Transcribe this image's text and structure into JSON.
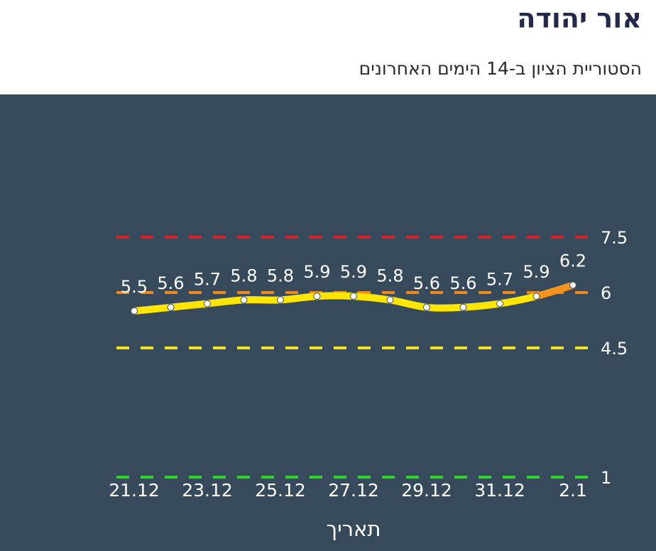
{
  "header": {
    "title": "אור יהודה",
    "subtitle": "הסטוריית הציון ב-14 הימים האחרונים"
  },
  "chart_data": {
    "type": "line",
    "title": "אור יהודה",
    "subtitle": "הסטוריית הציון ב-14 הימים האחרונים",
    "xlabel": "תאריך",
    "ylabel": "",
    "x": [
      "21.12",
      "22.12",
      "23.12",
      "24.12",
      "25.12",
      "26.12",
      "27.12",
      "28.12",
      "29.12",
      "30.12",
      "31.12",
      "1.1",
      "2.1"
    ],
    "x_tick_labels": [
      "21.12",
      "23.12",
      "25.12",
      "27.12",
      "29.12",
      "31.12",
      "2.1"
    ],
    "series": [
      {
        "values": [
          5.5,
          5.6,
          5.7,
          5.8,
          5.8,
          5.9,
          5.9,
          5.8,
          5.6,
          5.6,
          5.7,
          5.9,
          6.2
        ]
      }
    ],
    "data_labels": [
      "5.5",
      "5.6",
      "5.7",
      "5.8",
      "5.8",
      "5.9",
      "5.9",
      "5.8",
      "5.6",
      "5.6",
      "5.7",
      "5.9",
      "6.2"
    ],
    "thresholds": [
      {
        "value": 7.5,
        "label": "7.5",
        "color": "#dd1f26"
      },
      {
        "value": 6,
        "label": "6",
        "color": "#f08a1c"
      },
      {
        "value": 4.5,
        "label": "4.5",
        "color": "#f3e21f"
      },
      {
        "value": 1,
        "label": "1",
        "color": "#2fd42a"
      }
    ],
    "line_colors": {
      "below_6": "#ffe600",
      "above_6": "#f7941d"
    },
    "background": "#364a5c",
    "grid": false,
    "legend": "none"
  }
}
